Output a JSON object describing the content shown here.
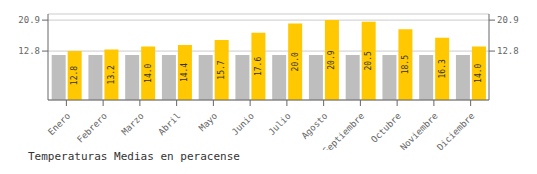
{
  "chart_data": {
    "type": "bar",
    "title": "Temperaturas Medias en peracense",
    "categories": [
      "Enero",
      "Febrero",
      "Marzo",
      "Abril",
      "Mayo",
      "Junio",
      "Julio",
      "Agosto",
      "Septiembre",
      "Octubre",
      "Noviembre",
      "Diciembre"
    ],
    "series": [
      {
        "color": "#BEBEBE",
        "values": [
          11.8,
          11.8,
          11.8,
          11.8,
          11.8,
          11.8,
          11.8,
          11.8,
          11.8,
          11.8,
          11.8,
          11.8
        ]
      },
      {
        "color": "#FFC800",
        "values": [
          12.8,
          13.2,
          14.0,
          14.4,
          15.7,
          17.6,
          20.0,
          20.9,
          20.5,
          18.5,
          16.3,
          14.0
        ],
        "value_labels": [
          "12.8",
          "13.2",
          "14.0",
          "14.4",
          "15.7",
          "17.6",
          "20.0",
          "20.9",
          "20.5",
          "18.5",
          "16.3",
          "14.0"
        ],
        "data_labels": true
      }
    ],
    "ylim": [
      0,
      22.5
    ],
    "yticks": [
      12.8,
      20.9
    ],
    "y2lim": [
      0,
      22.5
    ],
    "y2ticks": [
      12.8,
      20.9
    ],
    "grid": true
  }
}
